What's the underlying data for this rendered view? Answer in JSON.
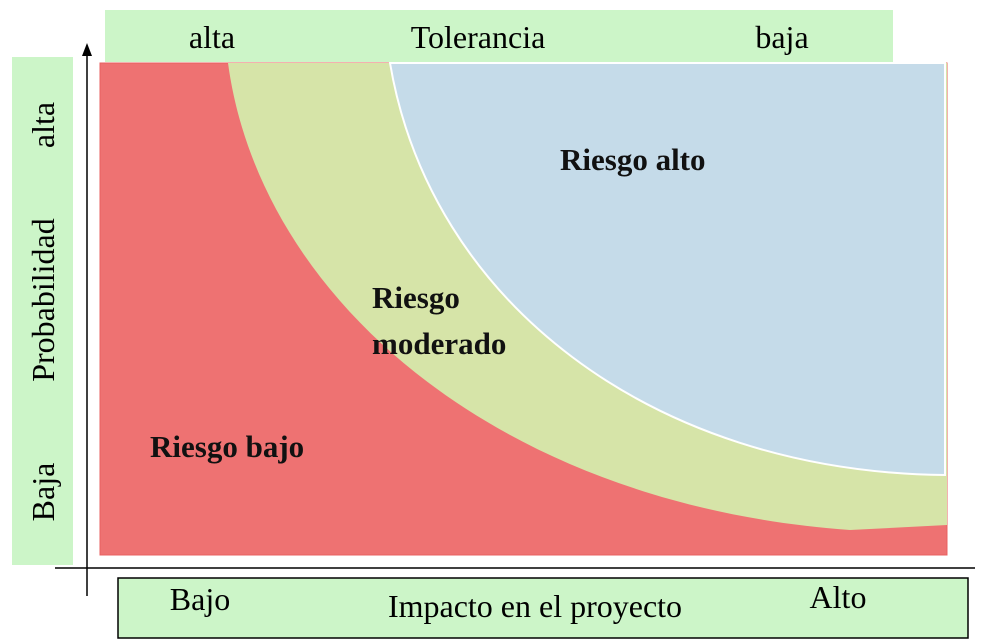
{
  "top_band": {
    "left": "alta",
    "title": "Tolerancia",
    "right": "baja"
  },
  "left_band": {
    "top": "alta",
    "title": "Probabilidad",
    "bottom": "Baja"
  },
  "bottom_band": {
    "left": "Bajo",
    "title": "Impacto en el proyecto",
    "right": "Alto"
  },
  "regions": {
    "high": "Riesgo alto",
    "moderate": [
      "Riesgo",
      "moderado"
    ],
    "low": "Riesgo bajo"
  }
}
